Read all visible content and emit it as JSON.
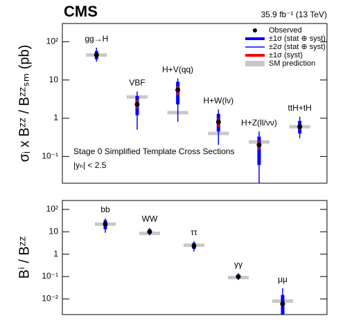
{
  "experiment": "CMS",
  "luminosity": "35.9 fb⁻¹ (13 TeV)",
  "chart_data": [
    {
      "type": "errorbar",
      "log_y": true,
      "y_label": "σᵢ x Bᶻᶻ / Bᶻᶻₛₘ (pb)",
      "annotations": [
        "Stage 0 Simplified Template Cross Sections",
        "|yₕ| < 2.5"
      ],
      "ylim": [
        0.02,
        300
      ],
      "yticks": [
        {
          "value": 100,
          "label": "10²"
        },
        10,
        1,
        {
          "value": 0.1,
          "label": "10⁻¹"
        }
      ],
      "categories": [
        "gg→H",
        "VBF",
        "H+V(qq)",
        "H+W(lν)",
        "H+Z(ll/νν)",
        "ttH+tH"
      ],
      "observed": {
        "name": "Observed",
        "color": "#000000",
        "values": [
          45,
          2.3,
          5.5,
          0.8,
          0.2,
          0.6
        ]
      },
      "two_sigma": {
        "name": "±2σ (stat ⊕ syst)",
        "color": "#0000ff",
        "low": [
          30,
          0.5,
          0.8,
          0.2,
          0.02,
          0.3
        ],
        "high": [
          70,
          5,
          11,
          1.7,
          0.45,
          1.1
        ]
      },
      "one_sigma": {
        "name": "±1σ (stat ⊕ syst)",
        "color": "#0000ff",
        "low": [
          35,
          1.2,
          2.3,
          0.45,
          0.06,
          0.4
        ],
        "high": [
          57,
          3.8,
          9,
          1.3,
          0.33,
          0.85
        ]
      },
      "syst": {
        "name": "±1σ (syst)",
        "color": "#ff0000",
        "low": [
          40,
          1.8,
          4,
          0.6,
          0.15,
          0.5
        ],
        "high": [
          52,
          3,
          7,
          1.0,
          0.26,
          0.7
        ]
      },
      "sm_prediction": {
        "name": "SM prediction",
        "color": "#c8c8c8",
        "values": [
          45,
          3.6,
          1.4,
          0.4,
          0.24,
          0.6
        ]
      }
    },
    {
      "type": "errorbar",
      "log_y": true,
      "y_label": "Bⁱ / Bᶻᶻ",
      "ylim": [
        0.002,
        250
      ],
      "yticks": [
        {
          "value": 100,
          "label": "10²"
        },
        10,
        1,
        {
          "value": 0.1,
          "label": "10⁻¹"
        },
        {
          "value": 0.01,
          "label": "10⁻²"
        }
      ],
      "categories": [
        "bb",
        "WW",
        "ττ",
        "γγ",
        "μμ"
      ],
      "observed": {
        "color": "#000000",
        "values": [
          22,
          10,
          2.3,
          0.1,
          0.006
        ]
      },
      "two_sigma": {
        "color": "#0000ff",
        "low": [
          9,
          7,
          1.3,
          0.07,
          0.002
        ],
        "high": [
          40,
          15,
          3.8,
          0.14,
          0.03
        ]
      },
      "one_sigma": {
        "color": "#0000ff",
        "low": [
          13,
          8,
          1.7,
          0.08,
          0.002
        ],
        "high": [
          33,
          13,
          3.2,
          0.12,
          0.015
        ]
      },
      "syst": {
        "color": "#ff0000",
        "low": [
          19,
          9.5,
          2.1,
          0.095,
          0.0055
        ],
        "high": [
          25,
          10.5,
          2.5,
          0.105,
          0.0065
        ]
      },
      "sm_prediction": {
        "color": "#c8c8c8",
        "values": [
          22,
          8.5,
          2.5,
          0.09,
          0.008
        ]
      }
    }
  ]
}
